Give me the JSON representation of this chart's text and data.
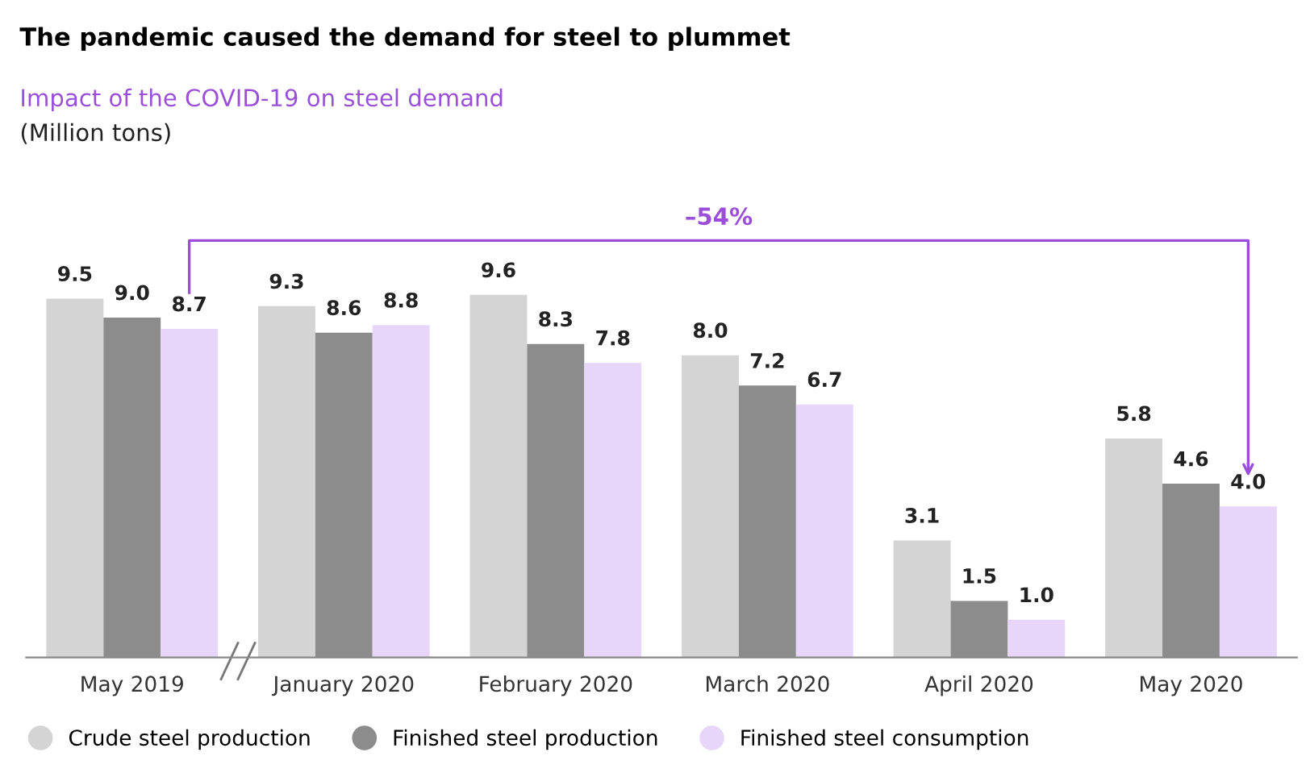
{
  "chart_data": {
    "type": "bar",
    "title": "The pandemic caused the demand for steel to plummet",
    "subtitle": "Impact of the COVID-19 on steel demand",
    "categories": [
      "May 2019",
      "January 2020",
      "February 2020",
      "March 2020",
      "April 2020",
      "May 2020"
    ],
    "series": [
      {
        "name": "Crude steel production",
        "color": "#d4d4d4",
        "values": [
          9.5,
          9.3,
          9.6,
          8.0,
          3.1,
          5.8
        ],
        "value_labels": [
          "9.5",
          "9.3",
          "9.6",
          "8.0",
          "3.1",
          "5.8"
        ]
      },
      {
        "name": "Finished steel production",
        "color": "#8c8c8c",
        "values": [
          9.0,
          8.6,
          8.3,
          7.2,
          1.5,
          4.6
        ],
        "value_labels": [
          "9.0",
          "8.6",
          "8.3",
          "7.2",
          "1.5",
          "4.6"
        ]
      },
      {
        "name": "Finished steel consumption",
        "color": "#e8d6fa",
        "values": [
          8.7,
          8.8,
          7.8,
          6.7,
          1.0,
          4.0
        ],
        "value_labels": [
          "8.7",
          "8.8",
          "7.8",
          "6.7",
          "1.0",
          "4.0"
        ]
      }
    ],
    "annotations": [
      "–54%",
      "(Million tons)"
    ],
    "legend": "bottom",
    "marker": "circle",
    "grid": false
  }
}
